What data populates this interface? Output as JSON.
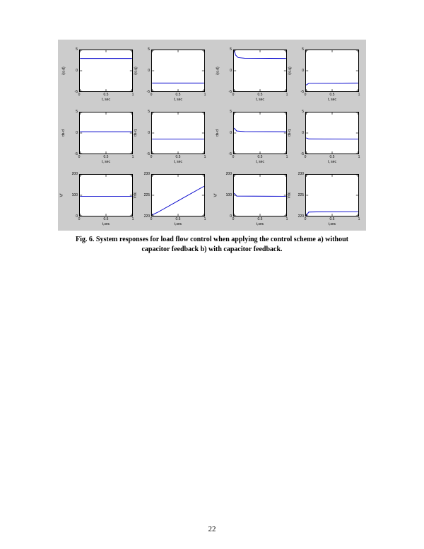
{
  "figure": {
    "caption_line1": "Fig. 6. System responses for load flow control when applying the control scheme a) without",
    "caption_line2": "capacitor feedback b) with capacitor feedback.",
    "panel_bg": "#cccccc",
    "plot_bg": "#ffffff",
    "line_color": "#0000cc",
    "axis_color": "#000000",
    "groups": [
      {
        "id": "a",
        "plots": [
          {
            "ylabel": "i(s-d)",
            "xlabel": "t, sec",
            "y_ticks": [
              "-5",
              "0",
              "5"
            ],
            "x_ticks": [
              "0",
              "0.5",
              "1"
            ],
            "ylim": [
              -5,
              5
            ],
            "xlim": [
              0,
              1
            ],
            "series": [
              [
                0,
                3
              ],
              [
                1,
                3
              ]
            ]
          },
          {
            "ylabel": "i(s-q)",
            "xlabel": "t, sec",
            "y_ticks": [
              "-5",
              "0",
              "5"
            ],
            "x_ticks": [
              "0",
              "0.5",
              "1"
            ],
            "ylim": [
              -5,
              5
            ],
            "xlim": [
              0,
              1
            ],
            "series": [
              [
                0,
                -3
              ],
              [
                1,
                -3
              ]
            ]
          },
          {
            "ylabel": "ds-d",
            "xlabel": "t, sec",
            "y_ticks": [
              "-5",
              "0",
              "5"
            ],
            "x_ticks": [
              "0",
              "0.5",
              "1"
            ],
            "ylim": [
              -5,
              5
            ],
            "xlim": [
              0,
              1
            ],
            "series": [
              [
                0,
                0.3
              ],
              [
                1,
                0.3
              ]
            ]
          },
          {
            "ylabel": "ds-q",
            "xlabel": "t, sec",
            "y_ticks": [
              "-5",
              "0",
              "5"
            ],
            "x_ticks": [
              "0",
              "0.5",
              "1"
            ],
            "ylim": [
              -5,
              5
            ],
            "xlim": [
              0,
              1
            ],
            "series": [
              [
                0,
                -1.5
              ],
              [
                1,
                -1.5
              ]
            ]
          },
          {
            "ylabel": "Vf",
            "xlabel": "t,sec",
            "y_ticks": [
              "0",
              "100",
              "200"
            ],
            "x_ticks": [
              "0",
              "0.5",
              "1"
            ],
            "ylim": [
              0,
              200
            ],
            "xlim": [
              0,
              1
            ],
            "series": [
              [
                0,
                95
              ],
              [
                1,
                95
              ]
            ]
          },
          {
            "ylabel": "Vdc",
            "xlabel": "t,sec",
            "y_ticks": [
              "220",
              "225",
              "230"
            ],
            "x_ticks": [
              "0",
              "0.5",
              "1"
            ],
            "ylim": [
              220,
              230
            ],
            "xlim": [
              0,
              1
            ],
            "series": [
              [
                0,
                220.2
              ],
              [
                0.1,
                220.8
              ],
              [
                1,
                227.2
              ]
            ]
          }
        ]
      },
      {
        "id": "b",
        "plots": [
          {
            "ylabel": "i(s-d)",
            "xlabel": "t, sec",
            "y_ticks": [
              "-5",
              "0",
              "5"
            ],
            "x_ticks": [
              "0",
              "0.5",
              "1"
            ],
            "ylim": [
              -5,
              5
            ],
            "xlim": [
              0,
              1
            ],
            "series": [
              [
                0,
                5
              ],
              [
                0.03,
                3.8
              ],
              [
                0.08,
                3.2
              ],
              [
                0.2,
                3.05
              ],
              [
                1,
                3
              ]
            ]
          },
          {
            "ylabel": "i(s-q)",
            "xlabel": "t, sec",
            "y_ticks": [
              "-5",
              "0",
              "5"
            ],
            "x_ticks": [
              "0",
              "0.5",
              "1"
            ],
            "ylim": [
              -5,
              5
            ],
            "xlim": [
              0,
              1
            ],
            "series": [
              [
                0,
                -3.5
              ],
              [
                0.05,
                -3.05
              ],
              [
                1,
                -3
              ]
            ]
          },
          {
            "ylabel": "ds-d",
            "xlabel": "t, sec",
            "y_ticks": [
              "-5",
              "0",
              "5"
            ],
            "x_ticks": [
              "0",
              "0.5",
              "1"
            ],
            "ylim": [
              -5,
              5
            ],
            "xlim": [
              0,
              1
            ],
            "series": [
              [
                0,
                1.2
              ],
              [
                0.05,
                0.5
              ],
              [
                0.2,
                0.35
              ],
              [
                1,
                0.3
              ]
            ]
          },
          {
            "ylabel": "ds-q",
            "xlabel": "t, sec",
            "y_ticks": [
              "-5",
              "0",
              "5"
            ],
            "x_ticks": [
              "0",
              "0.5",
              "1"
            ],
            "ylim": [
              -5,
              5
            ],
            "xlim": [
              0,
              1
            ],
            "series": [
              [
                0,
                -1.2
              ],
              [
                0.05,
                -1.45
              ],
              [
                1,
                -1.5
              ]
            ]
          },
          {
            "ylabel": "Vf",
            "xlabel": "t,sec",
            "y_ticks": [
              "0",
              "100",
              "200"
            ],
            "x_ticks": [
              "0",
              "0.5",
              "1"
            ],
            "ylim": [
              0,
              200
            ],
            "xlim": [
              0,
              1
            ],
            "series": [
              [
                0,
                110
              ],
              [
                0.05,
                96
              ],
              [
                1,
                95
              ]
            ]
          },
          {
            "ylabel": "Vdc",
            "xlabel": "t,sec",
            "y_ticks": [
              "220",
              "225",
              "230"
            ],
            "x_ticks": [
              "0",
              "0.5",
              "1"
            ],
            "ylim": [
              220,
              230
            ],
            "xlim": [
              0,
              1
            ],
            "series": [
              [
                0,
                220
              ],
              [
                0.05,
                220.9
              ],
              [
                0.2,
                220.95
              ],
              [
                1,
                221
              ]
            ]
          }
        ]
      }
    ]
  },
  "page_number": "22"
}
